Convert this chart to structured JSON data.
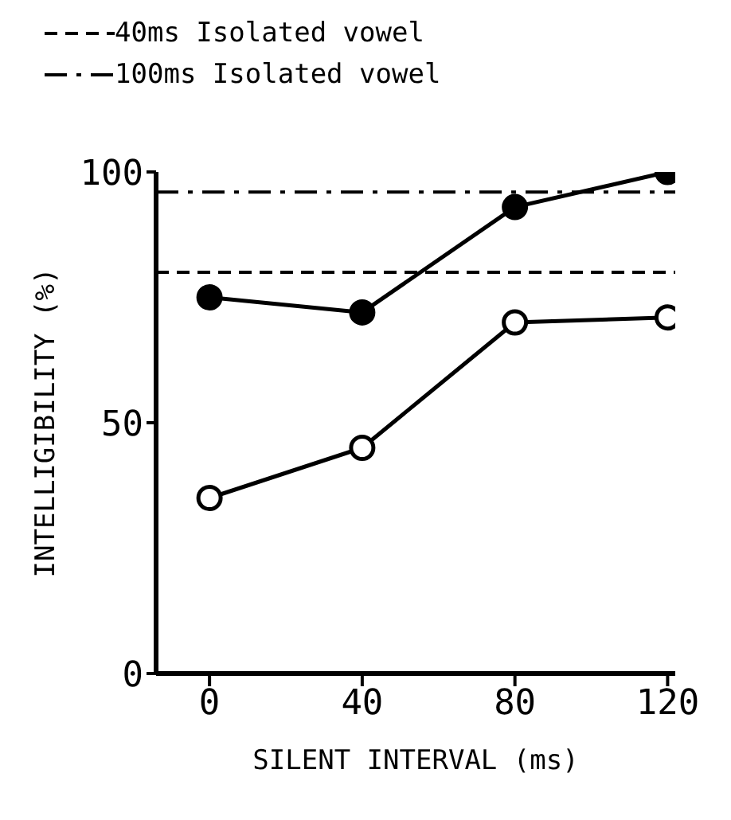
{
  "chart_data": {
    "type": "line",
    "xlabel": "SILENT INTERVAL  (ms)",
    "ylabel": "INTELLIGIBILITY  (%)",
    "x": [
      0,
      40,
      80,
      120
    ],
    "xlim": [
      -14,
      122
    ],
    "xticks": [
      0,
      40,
      80,
      120
    ],
    "ylim": [
      0,
      100
    ],
    "yticks": [
      0,
      50,
      100
    ],
    "marker": "circle",
    "line_style": "solid",
    "grid": false,
    "legend": "top left",
    "series": [
      {
        "color": "#000000",
        "values": [
          75,
          72,
          93,
          100
        ]
      },
      {
        "color": "#000000",
        "values": [
          35,
          45,
          70,
          71
        ]
      }
    ],
    "ref_lines": [
      {
        "axis": "y",
        "value": 80,
        "label": "40ms Isolated vowel",
        "line_style": "dashed",
        "color": "#000000"
      },
      {
        "axis": "y",
        "value": 96,
        "label": "100ms Isolated vowel",
        "line_style": "dashdot",
        "color": "#000000"
      }
    ]
  }
}
